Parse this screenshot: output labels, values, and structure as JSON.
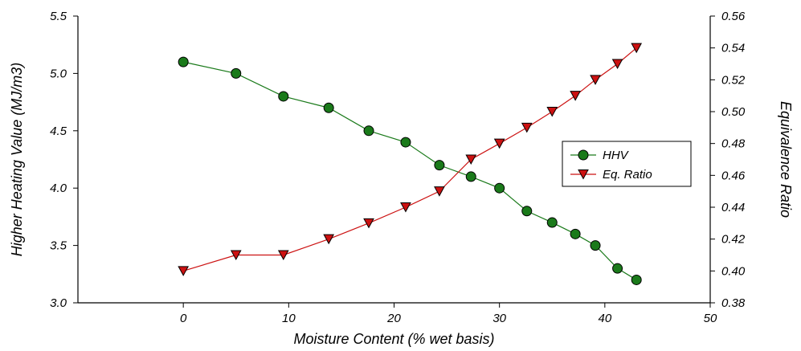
{
  "chart_data": {
    "type": "line",
    "xlabel": "Moisture Content (% wet basis)",
    "ylabel_left": "Higher Heating Value (MJ/m3)",
    "ylabel_right": "Equivalence Ratio",
    "xlim": [
      -10,
      50
    ],
    "xticks": [
      0,
      10,
      20,
      30,
      40,
      50
    ],
    "ylim_left": [
      3.0,
      5.5
    ],
    "yticks_left": [
      3.0,
      3.5,
      4.0,
      4.5,
      5.0,
      5.5
    ],
    "ylim_right": [
      0.38,
      0.56
    ],
    "yticks_right": [
      0.38,
      0.4,
      0.42,
      0.44,
      0.46,
      0.48,
      0.5,
      0.52,
      0.54,
      0.56
    ],
    "grid": false,
    "legend_position": "right",
    "series": [
      {
        "name": "HHV",
        "axis": "left",
        "marker": "circle",
        "color": "#1a7a1a",
        "points": [
          {
            "x": 0,
            "y": 5.1
          },
          {
            "x": 5,
            "y": 5.0
          },
          {
            "x": 9.5,
            "y": 4.8
          },
          {
            "x": 13.8,
            "y": 4.7
          },
          {
            "x": 17.6,
            "y": 4.5
          },
          {
            "x": 21.1,
            "y": 4.4
          },
          {
            "x": 24.3,
            "y": 4.2
          },
          {
            "x": 27.3,
            "y": 4.1
          },
          {
            "x": 30,
            "y": 4.0
          },
          {
            "x": 32.6,
            "y": 3.8
          },
          {
            "x": 35,
            "y": 3.7
          },
          {
            "x": 37.2,
            "y": 3.6
          },
          {
            "x": 39.1,
            "y": 3.5
          },
          {
            "x": 41.2,
            "y": 3.3
          },
          {
            "x": 43,
            "y": 3.2
          }
        ]
      },
      {
        "name": "Eq. Ratio",
        "axis": "right",
        "marker": "triangle-down",
        "color": "#cc1111",
        "points": [
          {
            "x": 0,
            "y": 0.4
          },
          {
            "x": 5,
            "y": 0.41
          },
          {
            "x": 9.5,
            "y": 0.41
          },
          {
            "x": 13.8,
            "y": 0.42
          },
          {
            "x": 17.6,
            "y": 0.43
          },
          {
            "x": 21.1,
            "y": 0.44
          },
          {
            "x": 24.3,
            "y": 0.45
          },
          {
            "x": 27.3,
            "y": 0.47
          },
          {
            "x": 30,
            "y": 0.48
          },
          {
            "x": 32.6,
            "y": 0.49
          },
          {
            "x": 35,
            "y": 0.5
          },
          {
            "x": 37.2,
            "y": 0.51
          },
          {
            "x": 39.1,
            "y": 0.52
          },
          {
            "x": 41.2,
            "y": 0.53
          },
          {
            "x": 43,
            "y": 0.54
          }
        ]
      }
    ]
  }
}
